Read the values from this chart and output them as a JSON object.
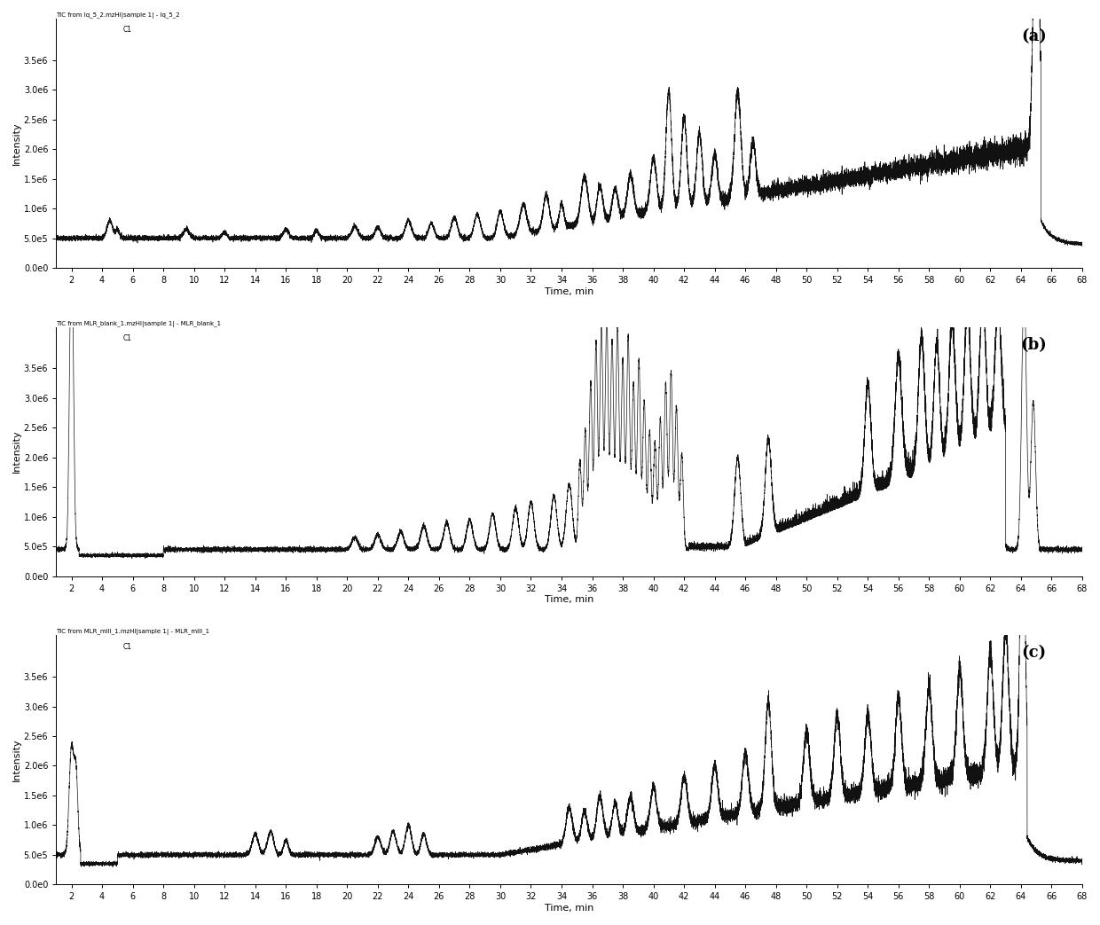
{
  "figure_size": [
    12.4,
    10.43
  ],
  "dpi": 100,
  "background_color": "#ffffff",
  "line_color": "#111111",
  "line_width": 0.5,
  "subplots": [
    {
      "label": "(a)",
      "title": "TIC from lq_5_2.mzHl|sample 1| - lq_5_2",
      "xlabel": "Time, min",
      "ylabel": "Intensity",
      "xlim": [
        1,
        68
      ],
      "ylim": [
        0,
        4200000
      ],
      "yticks": [
        0,
        500000,
        1000000,
        1500000,
        2000000,
        2500000,
        3000000,
        3500000
      ],
      "ytick_labels": [
        "0.0e0",
        "5.0e5",
        "1.0e6",
        "1.5e6",
        "2.0e6",
        "2.5e6",
        "3.0e6",
        "3.5e6"
      ],
      "xticks": [
        2,
        4,
        6,
        8,
        10,
        12,
        14,
        16,
        18,
        20,
        22,
        24,
        26,
        28,
        30,
        32,
        34,
        36,
        38,
        40,
        42,
        44,
        46,
        48,
        50,
        52,
        54,
        56,
        58,
        60,
        62,
        64,
        66,
        68
      ]
    },
    {
      "label": "(b)",
      "title": "TIC from MLR_blank_1.mzHl|sample 1| - MLR_blank_1",
      "xlabel": "Time, min",
      "ylabel": "Intensity",
      "xlim": [
        1,
        68
      ],
      "ylim": [
        0,
        4200000
      ],
      "yticks": [
        0,
        500000,
        1000000,
        1500000,
        2000000,
        2500000,
        3000000,
        3500000
      ],
      "ytick_labels": [
        "0.0e0",
        "5.0e5",
        "1.0e6",
        "1.5e6",
        "2.0e6",
        "2.5e6",
        "3.0e6",
        "3.5e6"
      ],
      "xticks": [
        2,
        4,
        6,
        8,
        10,
        12,
        14,
        16,
        18,
        20,
        22,
        24,
        26,
        28,
        30,
        32,
        34,
        36,
        38,
        40,
        42,
        44,
        46,
        48,
        50,
        52,
        54,
        56,
        58,
        60,
        62,
        64,
        66,
        68
      ]
    },
    {
      "label": "(c)",
      "title": "TIC from MLR_mlll_1.mzHl|sample 1| - MLR_mlll_1",
      "xlabel": "Time, min",
      "ylabel": "Intensity",
      "xlim": [
        1,
        68
      ],
      "ylim": [
        0,
        4200000
      ],
      "yticks": [
        0,
        500000,
        1000000,
        1500000,
        2000000,
        2500000,
        3000000,
        3500000
      ],
      "ytick_labels": [
        "0.0e0",
        "5.0e5",
        "1.0e6",
        "1.5e6",
        "2.0e6",
        "2.5e6",
        "3.0e6",
        "3.5e6"
      ],
      "xticks": [
        2,
        4,
        6,
        8,
        10,
        12,
        14,
        16,
        18,
        20,
        22,
        24,
        26,
        28,
        30,
        32,
        34,
        36,
        38,
        40,
        42,
        44,
        46,
        48,
        50,
        52,
        54,
        56,
        58,
        60,
        62,
        64,
        66,
        68
      ]
    }
  ],
  "ci_label": "C1"
}
